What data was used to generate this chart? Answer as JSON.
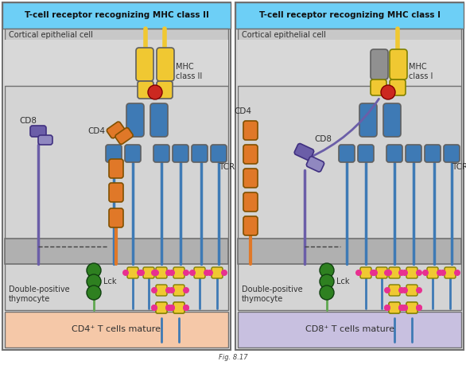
{
  "title_left": "T-cell receptor recognizing MHC class II",
  "title_right": "T-cell receptor recognizing MHC class I",
  "label_cortical": "Cortical epithelial cell",
  "label_double_pos": "Double-positive\nthymocyte",
  "label_cd4_mature": "CD4⁺ T cells mature",
  "label_cd8_mature": "CD8⁺ T cells mature",
  "label_lck": "Lck",
  "label_tcr": "TCR",
  "label_mhc2": "MHC\nclass II",
  "label_mhc1": "MHC\nclass I",
  "label_cd8_L": "CD8",
  "label_cd4_L": "CD4",
  "label_cd4_R": "CD4",
  "label_cd8_R": "CD8",
  "color_title_bg": "#6DCFF6",
  "color_panel_bg": "#E8E8E8",
  "color_cortical_bg": "#C8C8C8",
  "color_cortical_inner": "#D8D8D8",
  "color_membrane": "#B0B0B0",
  "color_thymocyte_bg": "#D4D4D4",
  "color_mature_left": "#F5C8A8",
  "color_mature_right": "#C8C0E0",
  "color_mhc_yellow": "#F0C832",
  "color_mhc_gray": "#909090",
  "color_tcr_blue": "#3E7AB5",
  "color_tcr_blue_dark": "#2A5A8A",
  "color_cd4_orange": "#E07828",
  "color_cd8_purple": "#6B5EA8",
  "color_cd8_purple_light": "#9088C0",
  "color_lck_green": "#2E8020",
  "color_lck_stem": "#60A850",
  "color_magenta": "#E83090",
  "color_red_dot": "#CC2820",
  "color_border_dark": "#404040",
  "color_border_mid": "#707070",
  "color_white": "#FFFFFF",
  "color_stem_blue": "#3E7AB5",
  "color_stem_purple": "#6B5EA8",
  "color_stem_orange": "#E07828",
  "fig_bg": "#FFFFFF",
  "caption": "Fig. 8.17"
}
